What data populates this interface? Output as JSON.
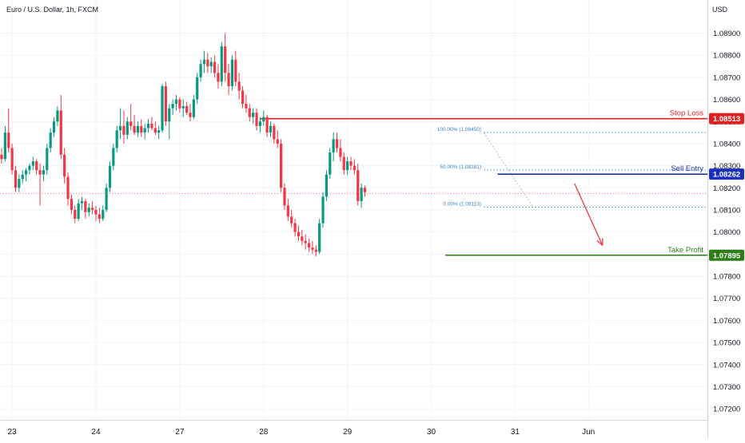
{
  "chart_data": {
    "type": "candlestick",
    "title": "Euro / U.S. Dollar, 1h, FXCM",
    "currency": "USD",
    "x_labels": [
      {
        "label": "23",
        "bar": 3
      },
      {
        "label": "24",
        "bar": 27
      },
      {
        "label": "27",
        "bar": 51
      },
      {
        "label": "28",
        "bar": 75
      },
      {
        "label": "29",
        "bar": 99
      },
      {
        "label": "30",
        "bar": 123
      },
      {
        "label": "31",
        "bar": 147
      },
      {
        "label": "Jun",
        "bar": 168
      }
    ],
    "y_ticks": [
      "1.08900",
      "1.08800",
      "1.08700",
      "1.08600",
      "1.08500",
      "1.08400",
      "1.08300",
      "1.08200",
      "1.08100",
      "1.08000",
      "1.07900",
      "1.07800",
      "1.07700",
      "1.07600",
      "1.07500",
      "1.07400",
      "1.07300",
      "1.07200"
    ],
    "ylim": [
      1.0715,
      1.0905
    ],
    "levels": [
      {
        "name": "Stop Loss",
        "price_label": "1.08513",
        "value": 1.08513,
        "color": "#e02020",
        "from_bar": 74
      },
      {
        "name": "Sell Entry",
        "price_label": "1.08262",
        "value": 1.08262,
        "color": "#1a2fbf",
        "from_bar": 142
      },
      {
        "name": "Take Profit",
        "price_label": "1.07895",
        "value": 1.07895,
        "color": "#2e7d16",
        "from_bar": 127
      }
    ],
    "fibonacci": [
      {
        "label": "100.00% (1.08450)",
        "value": 1.0845
      },
      {
        "label": "50.00% (1.08281)",
        "value": 1.08281
      },
      {
        "label": "0.00% (1.08113)",
        "value": 1.08113
      }
    ],
    "fib_from_bar": 138,
    "current_price": 1.08175,
    "arrow": {
      "from_bar": 164,
      "from_value": 1.0822,
      "to_bar": 172,
      "to_value": 1.0794
    },
    "candles": [
      [
        1.0835,
        1.0838,
        1.0831,
        1.0833
      ],
      [
        1.0833,
        1.0848,
        1.0832,
        1.0845
      ],
      [
        1.0845,
        1.0856,
        1.0836,
        1.0838
      ],
      [
        1.0838,
        1.084,
        1.0826,
        1.0828
      ],
      [
        1.0828,
        1.083,
        1.0818,
        1.082
      ],
      [
        1.082,
        1.0826,
        1.0818,
        1.0824
      ],
      [
        1.0824,
        1.0828,
        1.0822,
        1.0826
      ],
      [
        1.0826,
        1.0829,
        1.0823,
        1.0828
      ],
      [
        1.0828,
        1.0831,
        1.0826,
        1.083
      ],
      [
        1.083,
        1.0834,
        1.0828,
        1.0832
      ],
      [
        1.0832,
        1.0833,
        1.0826,
        1.0828
      ],
      [
        1.0828,
        1.0831,
        1.0812,
        1.0826
      ],
      [
        1.0826,
        1.083,
        1.0823,
        1.0828
      ],
      [
        1.0828,
        1.084,
        1.0826,
        1.0838
      ],
      [
        1.0838,
        1.0847,
        1.0836,
        1.0845
      ],
      [
        1.0845,
        1.0852,
        1.0843,
        1.085
      ],
      [
        1.085,
        1.0857,
        1.0848,
        1.0855
      ],
      [
        1.0855,
        1.0862,
        1.0833,
        1.0835
      ],
      [
        1.0835,
        1.0838,
        1.0822,
        1.0825
      ],
      [
        1.0825,
        1.0827,
        1.0812,
        1.0815
      ],
      [
        1.0815,
        1.0817,
        1.0808,
        1.081
      ],
      [
        1.081,
        1.0812,
        1.0804,
        1.0806
      ],
      [
        1.0806,
        1.0815,
        1.0805,
        1.0813
      ],
      [
        1.0813,
        1.0816,
        1.081,
        1.0814
      ],
      [
        1.0814,
        1.0815,
        1.0806,
        1.0809
      ],
      [
        1.0809,
        1.0813,
        1.0807,
        1.0811
      ],
      [
        1.0811,
        1.0814,
        1.0808,
        1.081
      ],
      [
        1.081,
        1.0812,
        1.0805,
        1.0808
      ],
      [
        1.0808,
        1.0811,
        1.0804,
        1.0806
      ],
      [
        1.0806,
        1.0812,
        1.0805,
        1.081
      ],
      [
        1.081,
        1.0822,
        1.0809,
        1.082
      ],
      [
        1.082,
        1.0832,
        1.0818,
        1.083
      ],
      [
        1.083,
        1.084,
        1.0828,
        1.0838
      ],
      [
        1.0838,
        1.0848,
        1.0836,
        1.0846
      ],
      [
        1.0846,
        1.0856,
        1.0842,
        1.0848
      ],
      [
        1.0848,
        1.0855,
        1.084,
        1.0844
      ],
      [
        1.0844,
        1.0852,
        1.0842,
        1.085
      ],
      [
        1.085,
        1.0858,
        1.0846,
        1.0848
      ],
      [
        1.0848,
        1.0853,
        1.0844,
        1.0845
      ],
      [
        1.0845,
        1.085,
        1.0843,
        1.0848
      ],
      [
        1.0848,
        1.0851,
        1.0843,
        1.0845
      ],
      [
        1.0845,
        1.0849,
        1.0842,
        1.0847
      ],
      [
        1.0847,
        1.0851,
        1.0845,
        1.0849
      ],
      [
        1.0849,
        1.0852,
        1.0846,
        1.0847
      ],
      [
        1.0847,
        1.085,
        1.0844,
        1.0845
      ],
      [
        1.0845,
        1.0848,
        1.0842,
        1.0846
      ],
      [
        1.0846,
        1.0867,
        1.0845,
        1.0866
      ],
      [
        1.0866,
        1.0868,
        1.0848,
        1.085
      ],
      [
        1.085,
        1.0858,
        1.0842,
        1.0856
      ],
      [
        1.0856,
        1.086,
        1.0853,
        1.0858
      ],
      [
        1.0858,
        1.0862,
        1.0855,
        1.086
      ],
      [
        1.086,
        1.0861,
        1.0854,
        1.0856
      ],
      [
        1.0856,
        1.086,
        1.0852,
        1.0857
      ],
      [
        1.0857,
        1.0859,
        1.0853,
        1.0854
      ],
      [
        1.0854,
        1.0858,
        1.085,
        1.0852
      ],
      [
        1.0852,
        1.0862,
        1.0851,
        1.086
      ],
      [
        1.086,
        1.0872,
        1.0858,
        1.087
      ],
      [
        1.087,
        1.0878,
        1.0868,
        1.0876
      ],
      [
        1.0876,
        1.0882,
        1.0872,
        1.0878
      ],
      [
        1.0878,
        1.0881,
        1.0872,
        1.0875
      ],
      [
        1.0875,
        1.0879,
        1.0872,
        1.0877
      ],
      [
        1.0877,
        1.088,
        1.087,
        1.0872
      ],
      [
        1.0872,
        1.0876,
        1.0865,
        1.0868
      ],
      [
        1.0868,
        1.0886,
        1.0866,
        1.0884
      ],
      [
        1.0884,
        1.089,
        1.0868,
        1.0872
      ],
      [
        1.0872,
        1.0876,
        1.0862,
        1.0866
      ],
      [
        1.0866,
        1.088,
        1.0864,
        1.0878
      ],
      [
        1.0878,
        1.0882,
        1.0866,
        1.0868
      ],
      [
        1.0868,
        1.0872,
        1.086,
        1.0864
      ],
      [
        1.0864,
        1.0866,
        1.0856,
        1.0858
      ],
      [
        1.0858,
        1.0862,
        1.0854,
        1.0856
      ],
      [
        1.0856,
        1.0858,
        1.085,
        1.0852
      ],
      [
        1.0852,
        1.0856,
        1.0849,
        1.0854
      ],
      [
        1.0854,
        1.0856,
        1.0846,
        1.0848
      ],
      [
        1.0848,
        1.0852,
        1.0845,
        1.085
      ],
      [
        1.085,
        1.0855,
        1.0848,
        1.0852
      ],
      [
        1.0852,
        1.0853,
        1.0843,
        1.0845
      ],
      [
        1.0845,
        1.085,
        1.0843,
        1.0848
      ],
      [
        1.0848,
        1.0849,
        1.084,
        1.0842
      ],
      [
        1.0842,
        1.0846,
        1.0838,
        1.084
      ],
      [
        1.084,
        1.0842,
        1.0818,
        1.082
      ],
      [
        1.082,
        1.0822,
        1.081,
        1.0812
      ],
      [
        1.0812,
        1.0815,
        1.0805,
        1.0807
      ],
      [
        1.0807,
        1.081,
        1.0802,
        1.0804
      ],
      [
        1.0804,
        1.0806,
        1.0798,
        1.08
      ],
      [
        1.08,
        1.0803,
        1.0796,
        1.0798
      ],
      [
        1.0798,
        1.0801,
        1.0794,
        1.0796
      ],
      [
        1.0796,
        1.0799,
        1.0792,
        1.0795
      ],
      [
        1.0795,
        1.0797,
        1.0791,
        1.0793
      ],
      [
        1.0793,
        1.0796,
        1.079,
        1.0792
      ],
      [
        1.0792,
        1.0794,
        1.0789,
        1.0791
      ],
      [
        1.0791,
        1.0806,
        1.079,
        1.0804
      ],
      [
        1.0804,
        1.0818,
        1.0802,
        1.0816
      ],
      [
        1.0816,
        1.0828,
        1.0814,
        1.0826
      ],
      [
        1.0826,
        1.0838,
        1.0824,
        1.0836
      ],
      [
        1.0836,
        1.0845,
        1.0832,
        1.0842
      ],
      [
        1.0842,
        1.0845,
        1.0836,
        1.0838
      ],
      [
        1.0838,
        1.0842,
        1.0832,
        1.0834
      ],
      [
        1.0834,
        1.0836,
        1.0826,
        1.0828
      ],
      [
        1.0828,
        1.0834,
        1.0826,
        1.0832
      ],
      [
        1.0832,
        1.0834,
        1.0828,
        1.083
      ],
      [
        1.083,
        1.0833,
        1.0826,
        1.0828
      ],
      [
        1.0828,
        1.0831,
        1.0812,
        1.0814
      ],
      [
        1.0814,
        1.0822,
        1.0811,
        1.082
      ],
      [
        1.082,
        1.0821,
        1.0816,
        1.0818
      ]
    ]
  }
}
